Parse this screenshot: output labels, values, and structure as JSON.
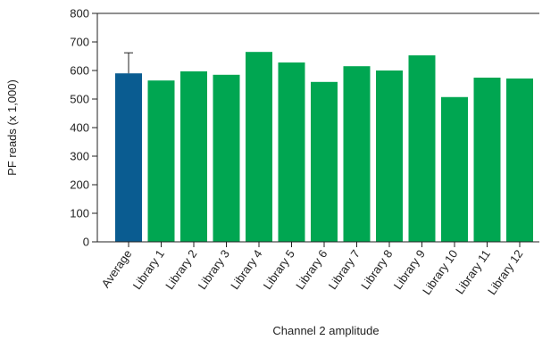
{
  "chart_data": {
    "type": "bar",
    "xlabel": "Channel 2 amplitude",
    "ylabel": "PF reads (x 1,000)",
    "categories": [
      "Average",
      "Library 1",
      "Library 2",
      "Library 3",
      "Library 4",
      "Library 5",
      "Library 6",
      "Library 7",
      "Library 8",
      "Library 9",
      "Library 10",
      "Library 11",
      "Library 12"
    ],
    "values": [
      590,
      565,
      597,
      585,
      665,
      628,
      560,
      615,
      600,
      653,
      507,
      575,
      572
    ],
    "error_bars": [
      {
        "category": "Average",
        "upper": 662
      }
    ],
    "ylim": [
      0,
      800
    ],
    "yticks": [
      0,
      100,
      200,
      300,
      400,
      500,
      600,
      700,
      800
    ],
    "grid": false,
    "legend": "none",
    "colors": {
      "highlight": "#0a5c91",
      "bars": "#00a651",
      "axis": "#222222"
    }
  }
}
